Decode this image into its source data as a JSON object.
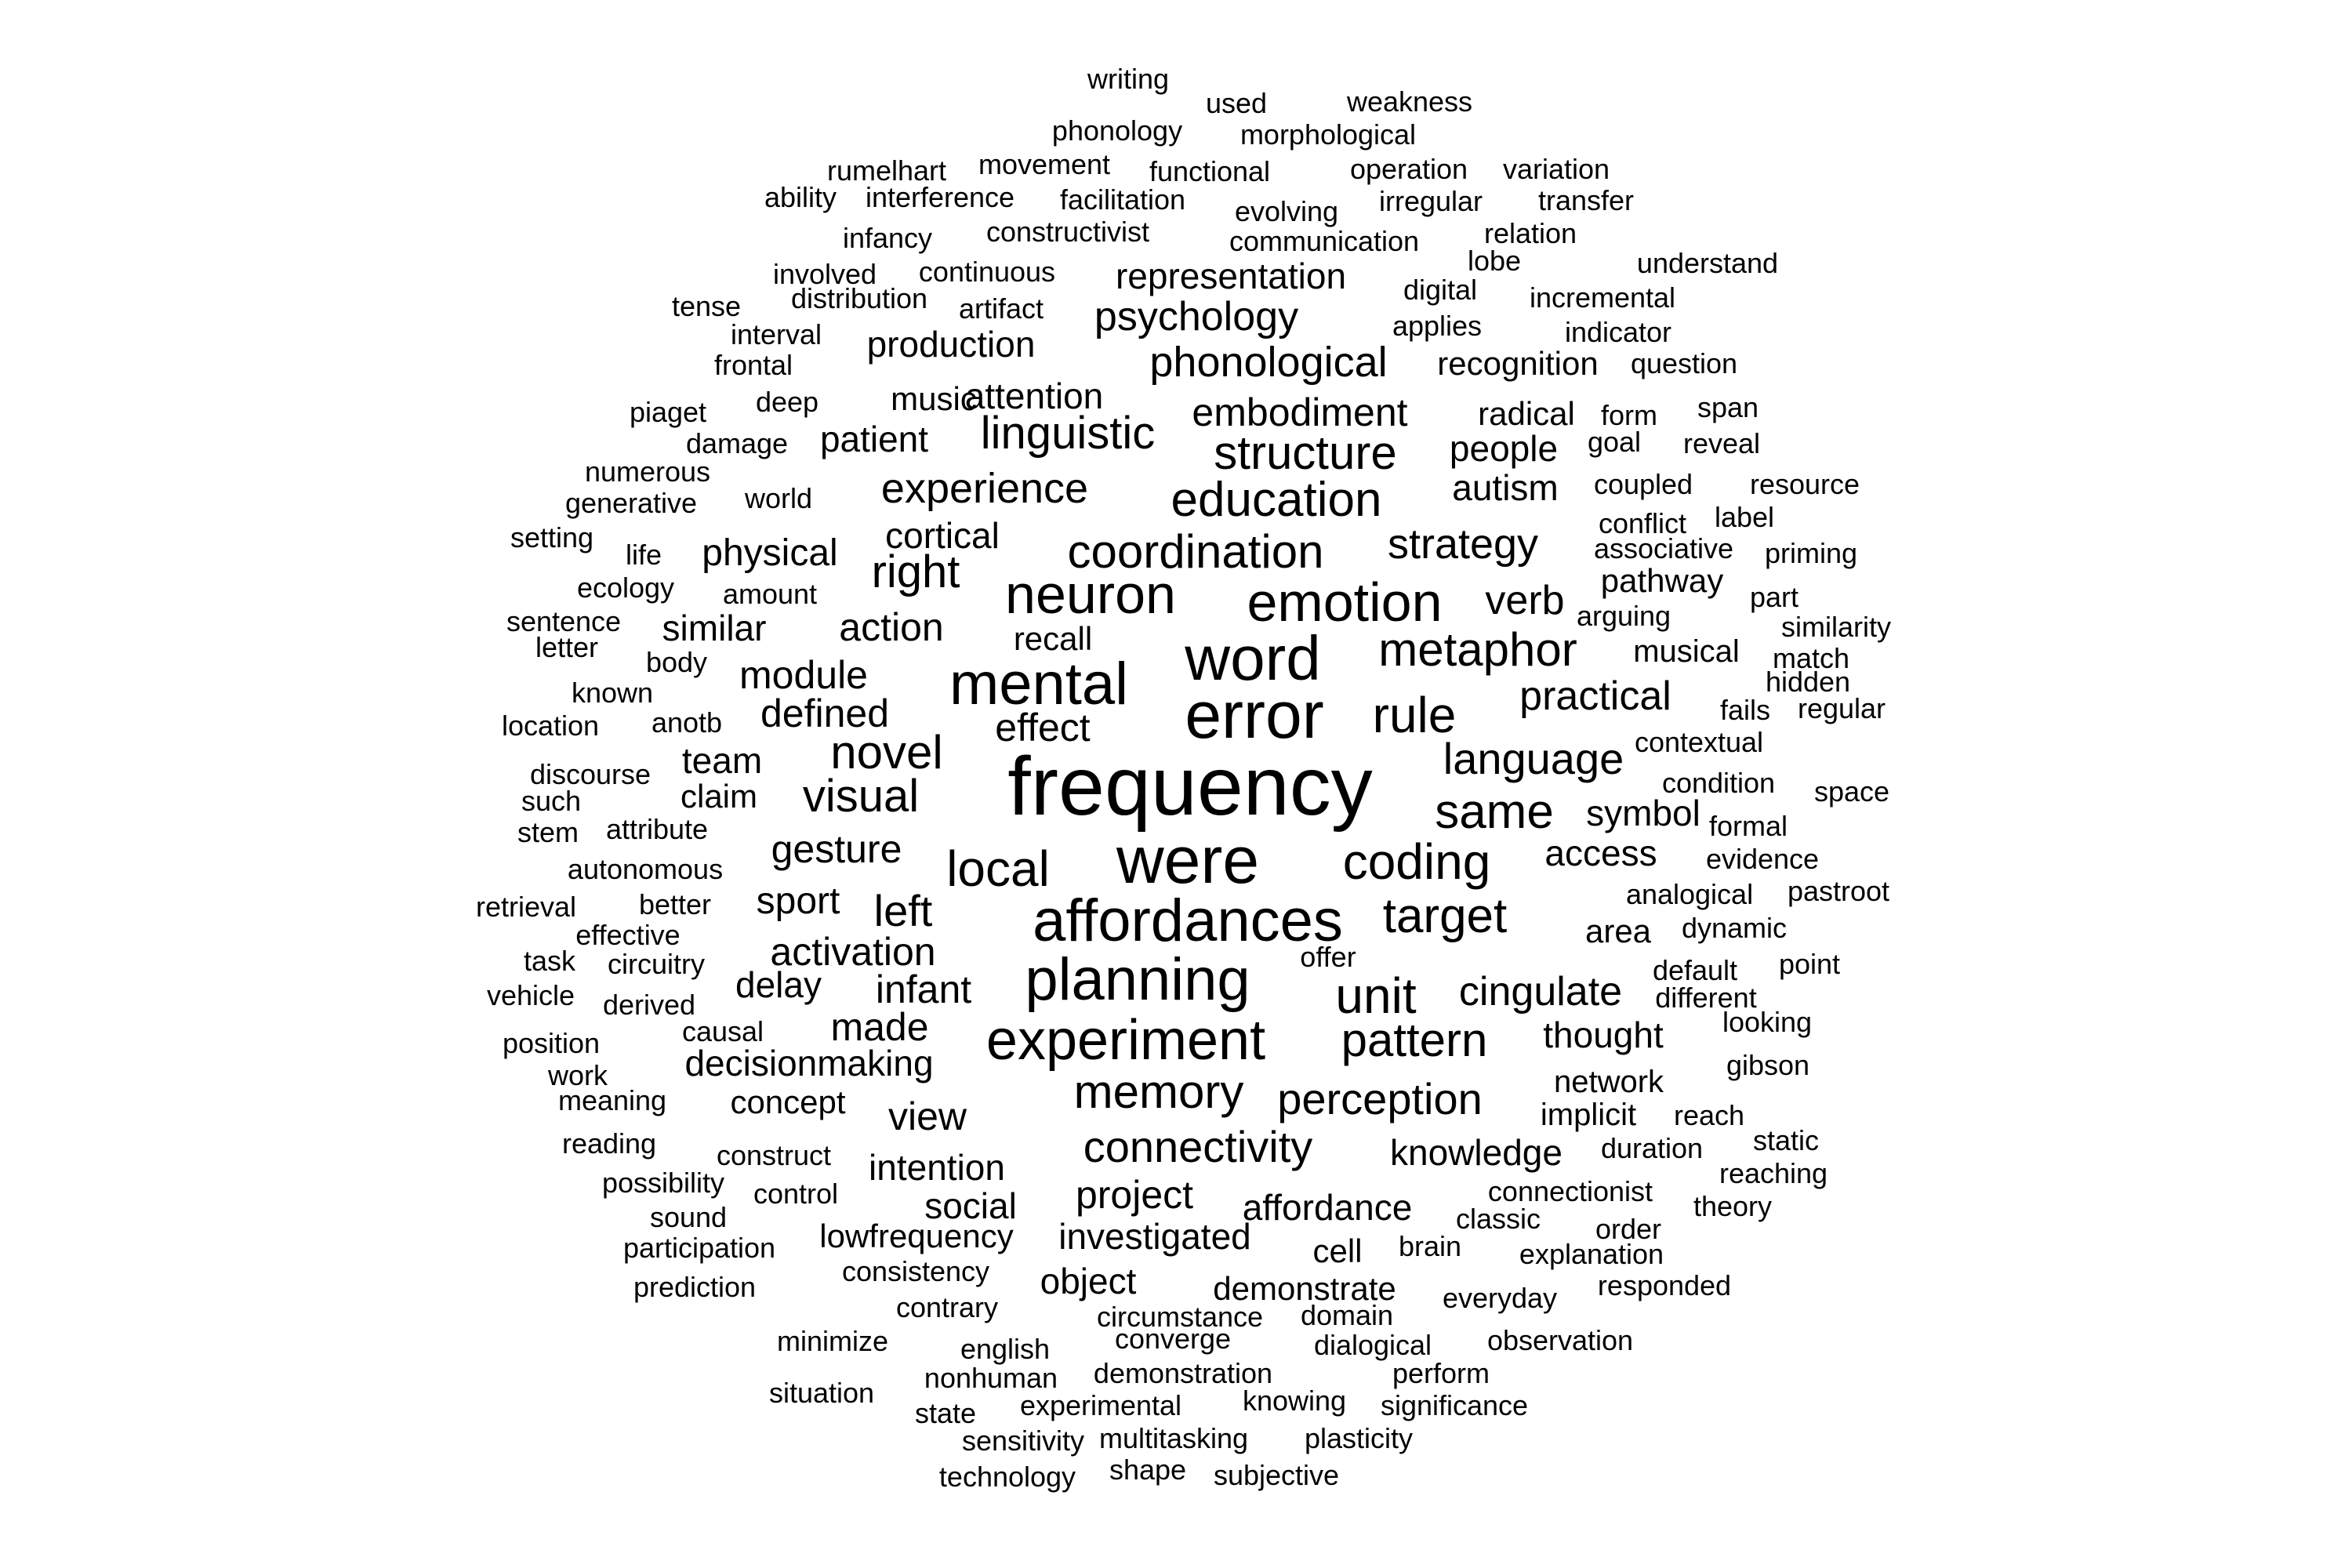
{
  "word_cloud": {
    "text_color": "#000000",
    "background": "#ffffff",
    "words": [
      "frequency",
      "error",
      "were",
      "word",
      "mental",
      "affordances",
      "planning",
      "experiment",
      "neuron",
      "emotion",
      "coding",
      "unit",
      "target",
      "rule",
      "metaphor",
      "coordination",
      "local",
      "education",
      "structure",
      "pattern",
      "memory",
      "perception",
      "same",
      "language",
      "novel",
      "visual",
      "cingulate",
      "connectivity",
      "linguistic",
      "experience",
      "strategy",
      "practical",
      "phonological",
      "psychology",
      "embodiment",
      "right",
      "left",
      "gesture",
      "activation",
      "infant",
      "effect",
      "defined",
      "module",
      "symbol",
      "access",
      "thought",
      "knowledge",
      "affordance",
      "project",
      "investigated",
      "view",
      "intention",
      "made",
      "delay",
      "sport",
      "team",
      "claim",
      "similar",
      "action",
      "physical",
      "cortical",
      "representation",
      "production",
      "attention",
      "patient",
      "music",
      "people",
      "autism",
      "radical",
      "recognition",
      "verb",
      "area",
      "network",
      "implicit",
      "social",
      "object",
      "demonstrate",
      "decisionmaking",
      "concept",
      "lowfrequency",
      "musical",
      "pathway",
      "recall",
      "writing",
      "used",
      "weakness",
      "phonology",
      "morphological",
      "rumelhart",
      "movement",
      "functional",
      "operation",
      "variation",
      "ability",
      "interference",
      "facilitation",
      "evolving",
      "irregular",
      "transfer",
      "infancy",
      "constructivist",
      "communication",
      "relation",
      "involved",
      "continuous",
      "lobe",
      "understand",
      "distribution",
      "digital",
      "incremental",
      "tense",
      "artifact",
      "interval",
      "applies",
      "indicator",
      "frontal",
      "question",
      "piaget",
      "deep",
      "form",
      "span",
      "damage",
      "goal",
      "reveal",
      "numerous",
      "coupled",
      "resource",
      "generative",
      "world",
      "conflict",
      "label",
      "setting",
      "life",
      "associative",
      "priming",
      "ecology",
      "amount",
      "part",
      "sentence",
      "arguing",
      "similarity",
      "letter",
      "body",
      "match",
      "hidden",
      "known",
      "fails",
      "regular",
      "location",
      "anotb",
      "contextual",
      "discourse",
      "condition",
      "such",
      "space",
      "stem",
      "attribute",
      "formal",
      "autonomous",
      "evidence",
      "retrieval",
      "better",
      "analogical",
      "pastroot",
      "effective",
      "dynamic",
      "task",
      "circuitry",
      "offer",
      "default",
      "point",
      "vehicle",
      "derived",
      "different",
      "position",
      "causal",
      "looking",
      "work",
      "gibson",
      "meaning",
      "reach",
      "reading",
      "construct",
      "duration",
      "static",
      "possibility",
      "control",
      "connectionist",
      "reaching",
      "sound",
      "classic",
      "theory",
      "participation",
      "cell",
      "brain",
      "order",
      "explanation",
      "consistency",
      "prediction",
      "responded",
      "contrary",
      "everyday",
      "circumstance",
      "domain",
      "minimize",
      "english",
      "converge",
      "dialogical",
      "observation",
      "nonhuman",
      "demonstration",
      "perform",
      "situation",
      "knowing",
      "significance",
      "state",
      "experimental",
      "sensitivity",
      "multitasking",
      "plasticity",
      "technology",
      "shape",
      "subjective"
    ]
  }
}
